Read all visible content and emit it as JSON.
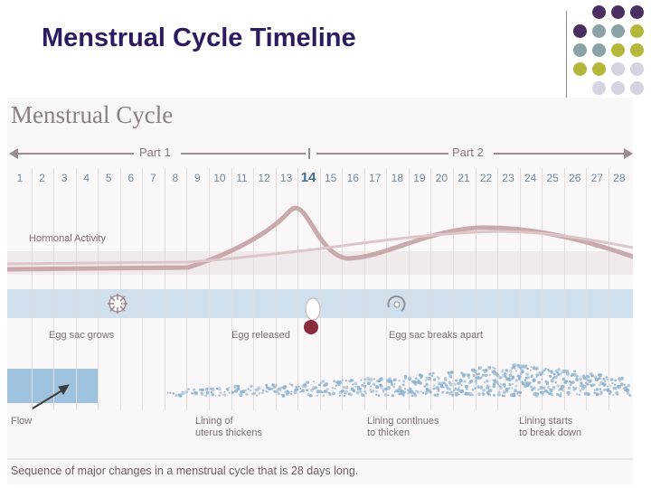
{
  "slide": {
    "title": "Menstrual Cycle Timeline"
  },
  "decor": {
    "dot_colors": [
      "#4a2f63",
      "#8ba3a7",
      "#b4b83a",
      "#d4d4e0"
    ]
  },
  "figure": {
    "title": "Menstrual Cycle",
    "part1_label": "Part 1",
    "part2_label": "Part 2",
    "days": [
      "1",
      "2",
      "3",
      "4",
      "5",
      "6",
      "7",
      "8",
      "9",
      "10",
      "11",
      "12",
      "13",
      "14",
      "15",
      "16",
      "17",
      "18",
      "19",
      "20",
      "21",
      "22",
      "23",
      "24",
      "25",
      "26",
      "27",
      "28"
    ],
    "highlight_day": "14",
    "hormonal_activity_label": "Hormonal Activity",
    "egg_sac_grows_label": "Egg sac grows",
    "egg_released_label": "Egg released",
    "egg_sac_breaks_label": "Egg sac breaks apart",
    "flow_label": "Flow",
    "lining_thickens_label": "Lining of\nuterus thickens",
    "lining_continues_label": "Lining continues\nto thicken",
    "lining_breakdown_label": "Lining starts\nto break down",
    "caption": "Sequence of major changes in a menstrual cycle that is 28 days long.",
    "colors": {
      "hormone_curve_1": "#c9a9ac",
      "hormone_curve_2": "#dcc6c8",
      "egg": "#8a2a3c",
      "lining_dots": "#8fb3cf",
      "day_numbers": "#6f8aa0",
      "band_blue": "#cfe0ec"
    }
  }
}
